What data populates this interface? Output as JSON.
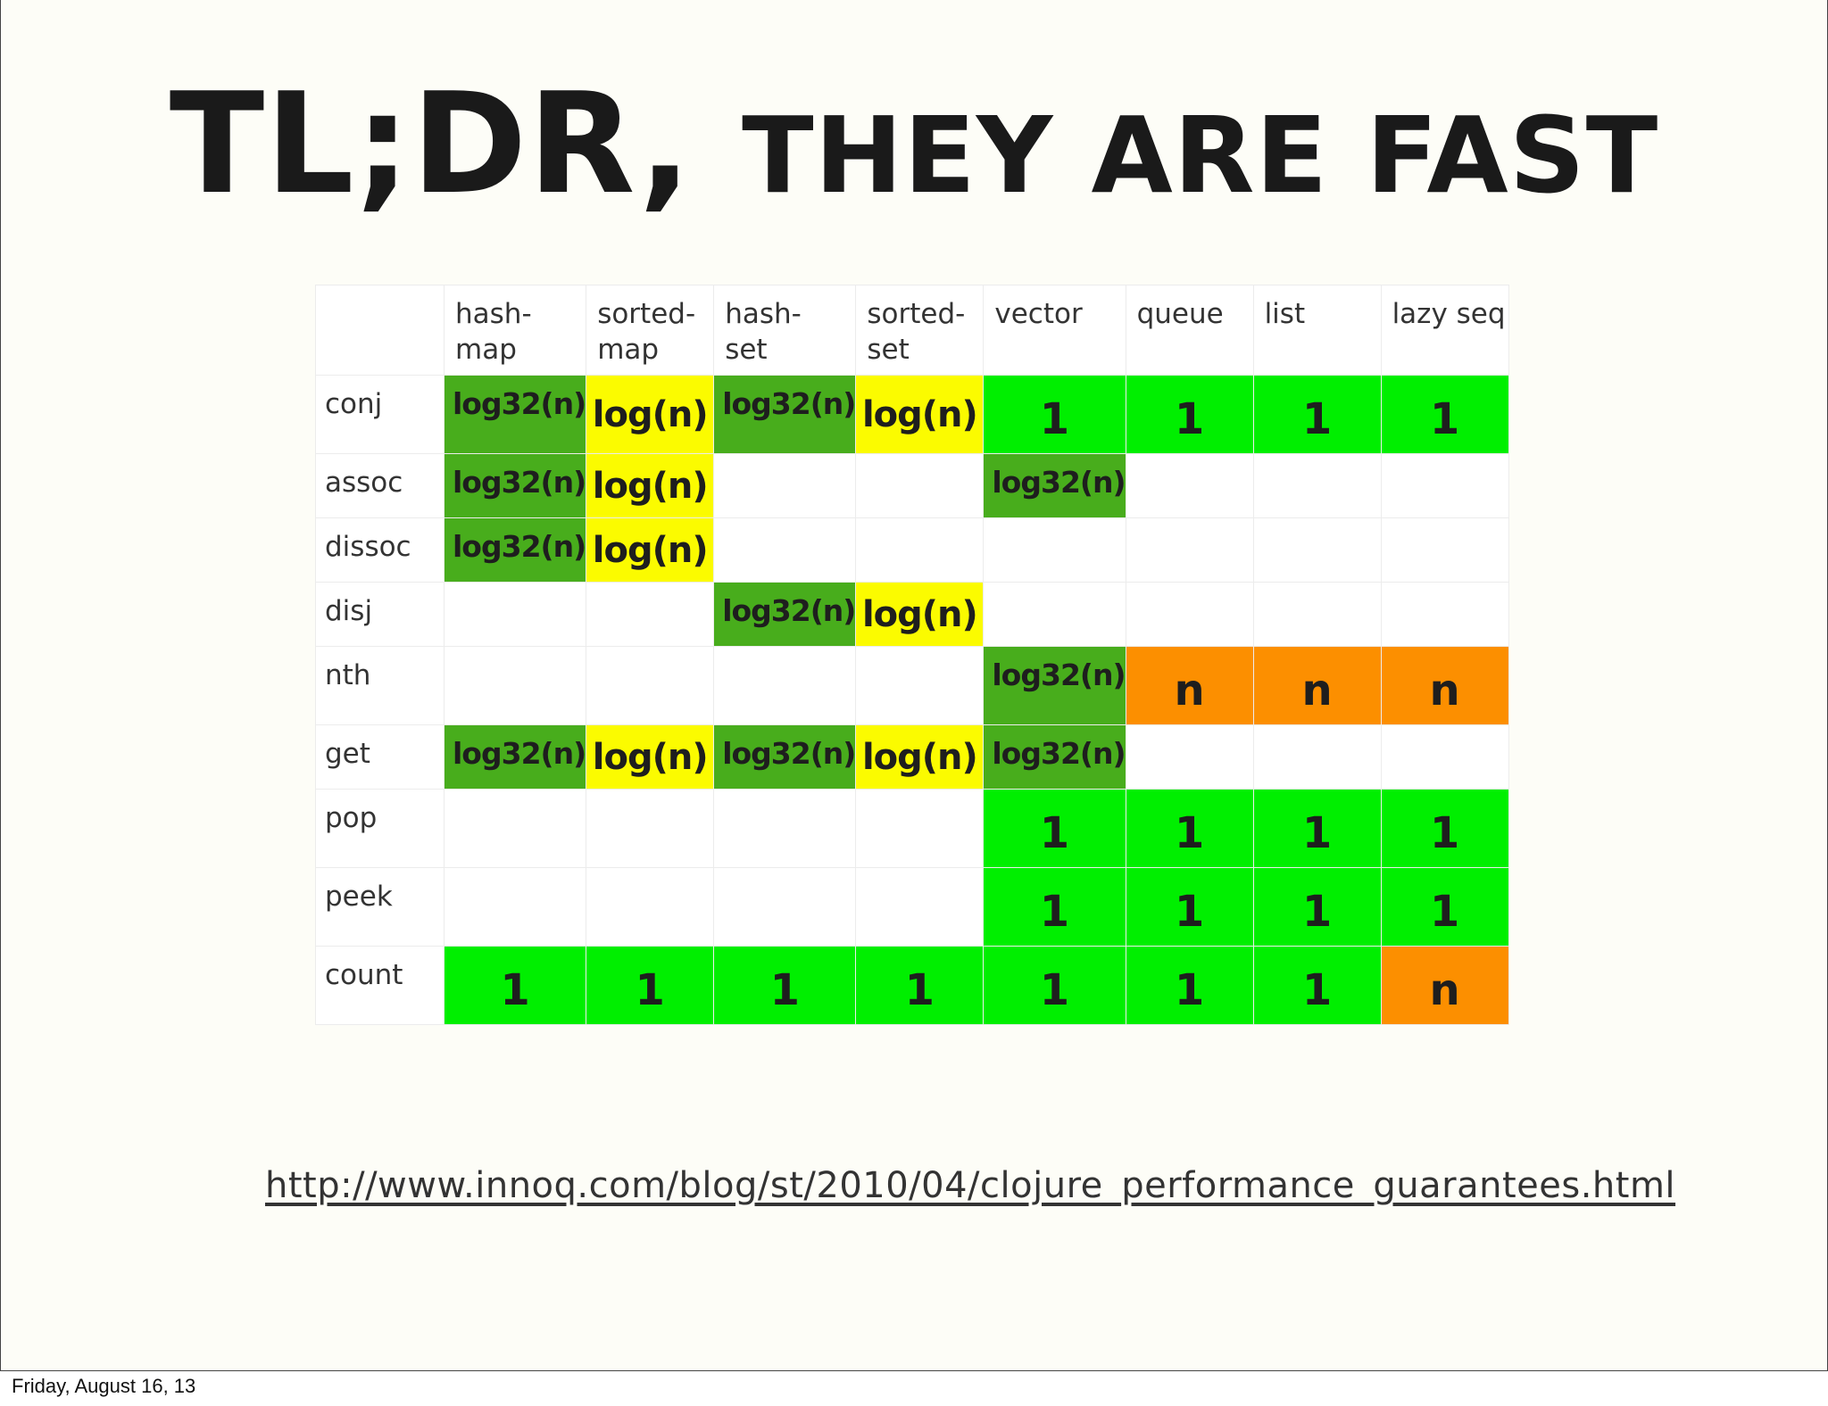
{
  "title": {
    "part1": "TL;DR, ",
    "part2": "THEY ARE FAST"
  },
  "table": {
    "columns": [
      [
        "hash-",
        "map"
      ],
      [
        "sorted-",
        "map"
      ],
      [
        "hash-",
        "set"
      ],
      [
        "sorted-",
        "set"
      ],
      [
        "vector"
      ],
      [
        "queue"
      ],
      [
        "list"
      ],
      [
        "lazy seq"
      ]
    ],
    "rows": [
      {
        "op": "conj",
        "size": "tall",
        "cells": [
          {
            "kind": "log32",
            "text": "log32(n)"
          },
          {
            "kind": "log",
            "text": "log(n)"
          },
          {
            "kind": "log32",
            "text": "log32(n)"
          },
          {
            "kind": "log",
            "text": "log(n)"
          },
          {
            "kind": "one",
            "text": "1"
          },
          {
            "kind": "one",
            "text": "1"
          },
          {
            "kind": "one",
            "text": "1"
          },
          {
            "kind": "one",
            "text": "1"
          }
        ]
      },
      {
        "op": "assoc",
        "size": "short",
        "cells": [
          {
            "kind": "log32",
            "text": "log32(n)"
          },
          {
            "kind": "log",
            "text": "log(n)"
          },
          {
            "kind": "empty",
            "text": ""
          },
          {
            "kind": "empty",
            "text": ""
          },
          {
            "kind": "log32",
            "text": "log32(n)"
          },
          {
            "kind": "empty",
            "text": ""
          },
          {
            "kind": "empty",
            "text": ""
          },
          {
            "kind": "empty",
            "text": ""
          }
        ]
      },
      {
        "op": "dissoc",
        "size": "short",
        "cells": [
          {
            "kind": "log32",
            "text": "log32(n)"
          },
          {
            "kind": "log",
            "text": "log(n)"
          },
          {
            "kind": "empty",
            "text": ""
          },
          {
            "kind": "empty",
            "text": ""
          },
          {
            "kind": "empty",
            "text": ""
          },
          {
            "kind": "empty",
            "text": ""
          },
          {
            "kind": "empty",
            "text": ""
          },
          {
            "kind": "empty",
            "text": ""
          }
        ]
      },
      {
        "op": "disj",
        "size": "short",
        "cells": [
          {
            "kind": "empty",
            "text": ""
          },
          {
            "kind": "empty",
            "text": ""
          },
          {
            "kind": "log32",
            "text": "log32(n)"
          },
          {
            "kind": "log",
            "text": "log(n)"
          },
          {
            "kind": "empty",
            "text": ""
          },
          {
            "kind": "empty",
            "text": ""
          },
          {
            "kind": "empty",
            "text": ""
          },
          {
            "kind": "empty",
            "text": ""
          }
        ]
      },
      {
        "op": "nth",
        "size": "tall",
        "cells": [
          {
            "kind": "empty",
            "text": ""
          },
          {
            "kind": "empty",
            "text": ""
          },
          {
            "kind": "empty",
            "text": ""
          },
          {
            "kind": "empty",
            "text": ""
          },
          {
            "kind": "log32",
            "text": "log32(n)"
          },
          {
            "kind": "n",
            "text": "n"
          },
          {
            "kind": "n",
            "text": "n"
          },
          {
            "kind": "n",
            "text": "n"
          }
        ]
      },
      {
        "op": "get",
        "size": "short",
        "cells": [
          {
            "kind": "log32",
            "text": "log32(n)"
          },
          {
            "kind": "log",
            "text": "log(n)"
          },
          {
            "kind": "log32",
            "text": "log32(n)"
          },
          {
            "kind": "log",
            "text": "log(n)"
          },
          {
            "kind": "log32",
            "text": "log32(n)"
          },
          {
            "kind": "empty",
            "text": ""
          },
          {
            "kind": "empty",
            "text": ""
          },
          {
            "kind": "empty",
            "text": ""
          }
        ]
      },
      {
        "op": "pop",
        "size": "tall",
        "cells": [
          {
            "kind": "empty",
            "text": ""
          },
          {
            "kind": "empty",
            "text": ""
          },
          {
            "kind": "empty",
            "text": ""
          },
          {
            "kind": "empty",
            "text": ""
          },
          {
            "kind": "one",
            "text": "1"
          },
          {
            "kind": "one",
            "text": "1"
          },
          {
            "kind": "one",
            "text": "1"
          },
          {
            "kind": "one",
            "text": "1"
          }
        ]
      },
      {
        "op": "peek",
        "size": "tall",
        "cells": [
          {
            "kind": "empty",
            "text": ""
          },
          {
            "kind": "empty",
            "text": ""
          },
          {
            "kind": "empty",
            "text": ""
          },
          {
            "kind": "empty",
            "text": ""
          },
          {
            "kind": "one",
            "text": "1"
          },
          {
            "kind": "one",
            "text": "1"
          },
          {
            "kind": "one",
            "text": "1"
          },
          {
            "kind": "one",
            "text": "1"
          }
        ]
      },
      {
        "op": "count",
        "size": "tall",
        "cells": [
          {
            "kind": "one",
            "text": "1"
          },
          {
            "kind": "one",
            "text": "1"
          },
          {
            "kind": "one",
            "text": "1"
          },
          {
            "kind": "one",
            "text": "1"
          },
          {
            "kind": "one",
            "text": "1"
          },
          {
            "kind": "one",
            "text": "1"
          },
          {
            "kind": "one",
            "text": "1"
          },
          {
            "kind": "n",
            "text": "n"
          }
        ]
      }
    ]
  },
  "kind_colors": {
    "log32": "#48ad1c",
    "log": "#fbfb00",
    "one": "#00ef00",
    "n": "#fc8f00"
  },
  "url": "http://www.innoq.com/blog/st/2010/04/clojure_performance_guarantees.html",
  "footer": "Friday, August 16, 13"
}
